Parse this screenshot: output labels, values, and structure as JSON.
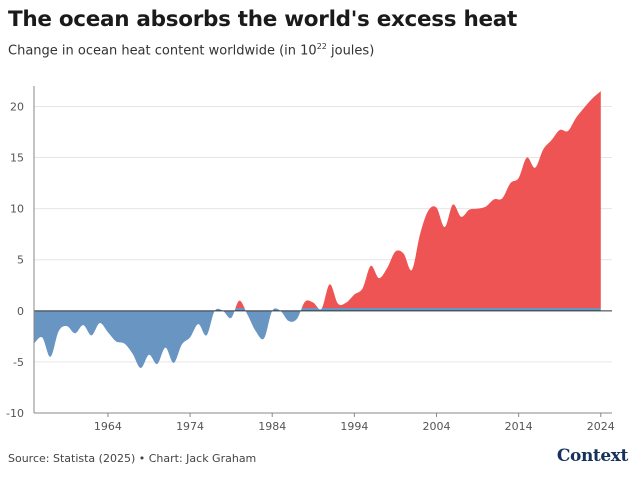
{
  "header": {
    "title": "The ocean absorbs the world's excess heat",
    "subtitle_text": "Change in ocean heat content worldwide (in 10",
    "subtitle_exp": "22",
    "subtitle_unit": " joules)"
  },
  "footer": {
    "source": "Source: Statista (2025) • Chart: Jack Graham",
    "logo": "Context"
  },
  "colors": {
    "positive": "#ef5454",
    "negative": "#6895c2",
    "grid": "#e6e6e6",
    "axis": "#888888"
  },
  "chart_data": {
    "type": "area",
    "title": "The ocean absorbs the world's excess heat",
    "ylabel": "Change in ocean heat content worldwide (in 10^22 joules)",
    "xlabel": "",
    "xlim": [
      1955,
      2025
    ],
    "ylim": [
      -10,
      22
    ],
    "y_ticks": [
      -10,
      -5,
      0,
      5,
      10,
      15,
      20
    ],
    "x_ticks": [
      1964,
      1974,
      1984,
      1994,
      2004,
      2014,
      2024
    ],
    "grid": "horizontal",
    "series": [
      {
        "name": "Ocean heat content change",
        "x": [
          1955,
          1956,
          1957,
          1958,
          1959,
          1960,
          1961,
          1962,
          1963,
          1964,
          1965,
          1966,
          1967,
          1968,
          1969,
          1970,
          1971,
          1972,
          1973,
          1974,
          1975,
          1976,
          1977,
          1978,
          1979,
          1980,
          1981,
          1982,
          1983,
          1984,
          1985,
          1986,
          1987,
          1988,
          1989,
          1990,
          1991,
          1992,
          1993,
          1994,
          1995,
          1996,
          1997,
          1998,
          1999,
          2000,
          2001,
          2002,
          2003,
          2004,
          2005,
          2006,
          2007,
          2008,
          2009,
          2010,
          2011,
          2012,
          2013,
          2014,
          2015,
          2016,
          2017,
          2018,
          2019,
          2020,
          2021,
          2022,
          2023,
          2024
        ],
        "values": [
          -3.2,
          -2.6,
          -4.5,
          -2.0,
          -1.5,
          -2.2,
          -1.4,
          -2.4,
          -1.2,
          -2.1,
          -3.0,
          -3.2,
          -4.2,
          -5.6,
          -4.3,
          -5.2,
          -3.6,
          -5.1,
          -3.3,
          -2.6,
          -1.3,
          -2.4,
          0.0,
          0.0,
          -0.7,
          1.0,
          -0.4,
          -2.0,
          -2.7,
          0.0,
          0.0,
          -1.0,
          -0.8,
          0.9,
          0.8,
          0.2,
          2.6,
          0.7,
          0.8,
          1.6,
          2.2,
          4.4,
          3.2,
          4.2,
          5.8,
          5.6,
          4.0,
          7.5,
          9.8,
          10.1,
          8.2,
          10.4,
          9.2,
          9.9,
          10.0,
          10.2,
          10.9,
          11.0,
          12.5,
          13.0,
          15.0,
          14.0,
          15.8,
          16.7,
          17.7,
          17.6,
          18.9,
          19.9,
          20.8,
          21.5
        ]
      }
    ]
  }
}
